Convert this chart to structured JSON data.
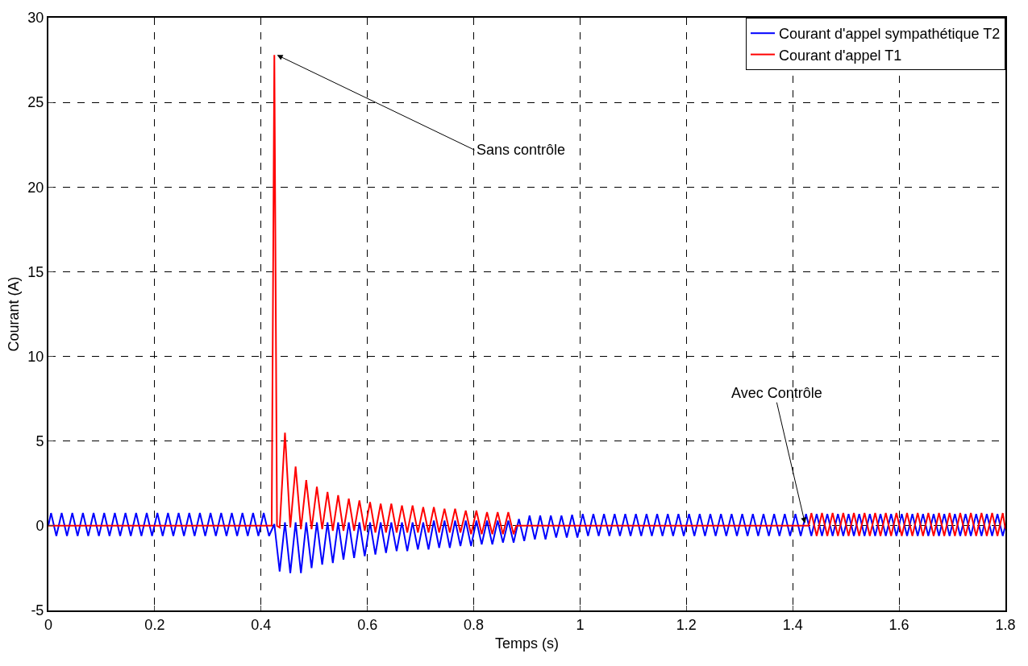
{
  "chart_data": {
    "type": "line",
    "xlabel": "Temps (s)",
    "ylabel": "Courant (A)",
    "xlim": [
      0,
      1.8
    ],
    "xticks": [
      0,
      0.2,
      0.4,
      0.6,
      0.8,
      1,
      1.2,
      1.4,
      1.6,
      1.8
    ],
    "ylim": [
      -5,
      30
    ],
    "yticks": [
      -5,
      0,
      5,
      10,
      15,
      20,
      25,
      30
    ],
    "grid": true,
    "legend": "top right",
    "line_style": "solid",
    "marker": "none",
    "annotations": [
      {
        "text": "Sans contrôle",
        "x": 0.43,
        "y": 27.8
      },
      {
        "text": "Avec Contrôle",
        "x": 1.423,
        "y": 0.15
      }
    ],
    "series": [
      {
        "name": "Courant d'appel sympathétique T2",
        "color": "#0000ff",
        "x": [
          0,
          0.005,
          0.015,
          0.025,
          0.035,
          0.045,
          0.055,
          0.065,
          0.075,
          0.085,
          0.095,
          0.105,
          0.115,
          0.125,
          0.135,
          0.145,
          0.155,
          0.165,
          0.175,
          0.185,
          0.195,
          0.205,
          0.215,
          0.225,
          0.235,
          0.245,
          0.255,
          0.265,
          0.275,
          0.285,
          0.295,
          0.305,
          0.315,
          0.325,
          0.335,
          0.345,
          0.355,
          0.365,
          0.375,
          0.385,
          0.395,
          0.405,
          0.415,
          0.425,
          0.435,
          0.445,
          0.455,
          0.465,
          0.475,
          0.485,
          0.495,
          0.505,
          0.515,
          0.525,
          0.535,
          0.545,
          0.555,
          0.565,
          0.575,
          0.585,
          0.595,
          0.605,
          0.615,
          0.625,
          0.635,
          0.645,
          0.655,
          0.665,
          0.675,
          0.685,
          0.695,
          0.705,
          0.715,
          0.725,
          0.735,
          0.745,
          0.755,
          0.765,
          0.775,
          0.785,
          0.795,
          0.805,
          0.815,
          0.825,
          0.835,
          0.845,
          0.855,
          0.865,
          0.875,
          0.885,
          0.895,
          0.905,
          0.915,
          0.925,
          0.935,
          0.945,
          0.955,
          0.965,
          0.975,
          0.985,
          0.995,
          1.005,
          1.015,
          1.025,
          1.035,
          1.045,
          1.055,
          1.065,
          1.075,
          1.085,
          1.095,
          1.105,
          1.115,
          1.125,
          1.135,
          1.145,
          1.155,
          1.165,
          1.175,
          1.185,
          1.195,
          1.205,
          1.215,
          1.225,
          1.235,
          1.245,
          1.255,
          1.265,
          1.275,
          1.285,
          1.295,
          1.305,
          1.315,
          1.325,
          1.335,
          1.345,
          1.355,
          1.365,
          1.375,
          1.385,
          1.395,
          1.405,
          1.415,
          1.425,
          1.435,
          1.445,
          1.455,
          1.465,
          1.475,
          1.485,
          1.495,
          1.505,
          1.515,
          1.525,
          1.535,
          1.545,
          1.555,
          1.565,
          1.575,
          1.585,
          1.595,
          1.605,
          1.615,
          1.625,
          1.635,
          1.645,
          1.655,
          1.665,
          1.675,
          1.685,
          1.695,
          1.705,
          1.715,
          1.725,
          1.735,
          1.745,
          1.755,
          1.765,
          1.775,
          1.785,
          1.795,
          1.8
        ],
        "values": [
          0,
          0.75,
          -0.6,
          0.75,
          -0.6,
          0.75,
          -0.6,
          0.75,
          -0.6,
          0.75,
          -0.6,
          0.75,
          -0.6,
          0.75,
          -0.6,
          0.75,
          -0.6,
          0.75,
          -0.6,
          0.75,
          -0.6,
          0.75,
          -0.6,
          0.75,
          -0.6,
          0.75,
          -0.6,
          0.75,
          -0.6,
          0.75,
          -0.6,
          0.75,
          -0.6,
          0.75,
          -0.6,
          0.75,
          -0.6,
          0.75,
          -0.6,
          0.75,
          -0.6,
          0.75,
          -0.6,
          0.1,
          -2.7,
          0.2,
          -2.8,
          0.2,
          -2.8,
          0.2,
          -2.5,
          0.2,
          -2.3,
          0.2,
          -2.2,
          0.2,
          -2.0,
          0.2,
          -1.9,
          0.2,
          -1.8,
          0.2,
          -1.7,
          0.2,
          -1.6,
          0.2,
          -1.5,
          0.2,
          -1.5,
          0.2,
          -1.4,
          0.2,
          -1.4,
          0.3,
          -1.3,
          0.3,
          -1.3,
          0.3,
          -1.2,
          0.3,
          -1.2,
          0.3,
          -1.1,
          0.3,
          -1.1,
          0.3,
          -1.0,
          0.3,
          -1.0,
          0.4,
          -0.9,
          0.6,
          -0.8,
          0.6,
          -0.8,
          0.6,
          -0.7,
          0.6,
          -0.7,
          0.65,
          -0.7,
          0.7,
          -0.6,
          0.7,
          -0.6,
          0.7,
          -0.6,
          0.7,
          -0.6,
          0.7,
          -0.6,
          0.7,
          -0.6,
          0.7,
          -0.6,
          0.7,
          -0.6,
          0.7,
          -0.6,
          0.7,
          -0.6,
          0.7,
          -0.6,
          0.7,
          -0.6,
          0.7,
          -0.6,
          0.7,
          -0.6,
          0.7,
          -0.6,
          0.7,
          -0.6,
          0.7,
          -0.6,
          0.7,
          -0.6,
          0.7,
          -0.6,
          0.7,
          -0.6,
          0.7,
          -0.6,
          0.7,
          -0.6,
          0.7,
          -0.6,
          0.7,
          -0.6,
          0.7,
          -0.6,
          0.7,
          -0.6,
          0.7,
          -0.6,
          0.7,
          -0.6,
          0.7,
          -0.6,
          0.7,
          -0.6,
          0.7,
          -0.6,
          0.7,
          -0.6,
          0.7,
          -0.6,
          0.7,
          -0.6,
          0.7,
          -0.6,
          0.7,
          -0.6,
          0.7,
          -0.6,
          0.7,
          -0.6,
          0.7,
          -0.6,
          0.7,
          -0.6,
          0
        ]
      },
      {
        "name": "Courant d'appel T1",
        "color": "#ff0000",
        "x": [
          0,
          0.42,
          0.425,
          0.43,
          0.435,
          0.445,
          0.455,
          0.465,
          0.475,
          0.485,
          0.495,
          0.505,
          0.515,
          0.525,
          0.535,
          0.545,
          0.555,
          0.565,
          0.575,
          0.585,
          0.595,
          0.605,
          0.615,
          0.625,
          0.635,
          0.645,
          0.655,
          0.665,
          0.675,
          0.685,
          0.695,
          0.705,
          0.715,
          0.725,
          0.735,
          0.745,
          0.755,
          0.765,
          0.775,
          0.785,
          0.795,
          0.805,
          0.815,
          0.825,
          0.835,
          0.845,
          0.855,
          0.865,
          0.875,
          0.88,
          1.43,
          1.435,
          1.445,
          1.455,
          1.465,
          1.475,
          1.485,
          1.495,
          1.505,
          1.515,
          1.525,
          1.535,
          1.545,
          1.555,
          1.565,
          1.575,
          1.585,
          1.595,
          1.605,
          1.615,
          1.625,
          1.635,
          1.645,
          1.655,
          1.665,
          1.675,
          1.685,
          1.695,
          1.705,
          1.715,
          1.725,
          1.735,
          1.745,
          1.755,
          1.765,
          1.775,
          1.785,
          1.795,
          1.8
        ],
        "values": [
          0,
          0,
          27.8,
          0,
          -0.1,
          5.5,
          -0.1,
          3.5,
          -0.2,
          2.7,
          -0.2,
          2.3,
          -0.2,
          2.0,
          -0.3,
          1.8,
          -0.3,
          1.6,
          -0.3,
          1.5,
          -0.3,
          1.4,
          -0.4,
          1.3,
          -0.4,
          1.3,
          -0.4,
          1.2,
          -0.4,
          1.2,
          -0.4,
          1.1,
          -0.4,
          1.1,
          -0.4,
          1.0,
          -0.4,
          1.0,
          -0.4,
          0.9,
          -0.5,
          0.9,
          -0.5,
          0.8,
          -0.5,
          0.8,
          -0.5,
          0.8,
          -0.5,
          0,
          0,
          0.75,
          -0.6,
          0.75,
          -0.6,
          0.75,
          -0.6,
          0.75,
          -0.6,
          0.75,
          -0.6,
          0.75,
          -0.6,
          0.75,
          -0.6,
          0.75,
          -0.6,
          0.75,
          -0.6,
          0.75,
          -0.6,
          0.75,
          -0.6,
          0.75,
          -0.6,
          0.75,
          -0.6,
          0.75,
          -0.6,
          0.75,
          -0.6,
          0.75,
          -0.6,
          0.75,
          -0.6,
          0.75,
          -0.6,
          0.75,
          -0.2
        ]
      }
    ]
  }
}
